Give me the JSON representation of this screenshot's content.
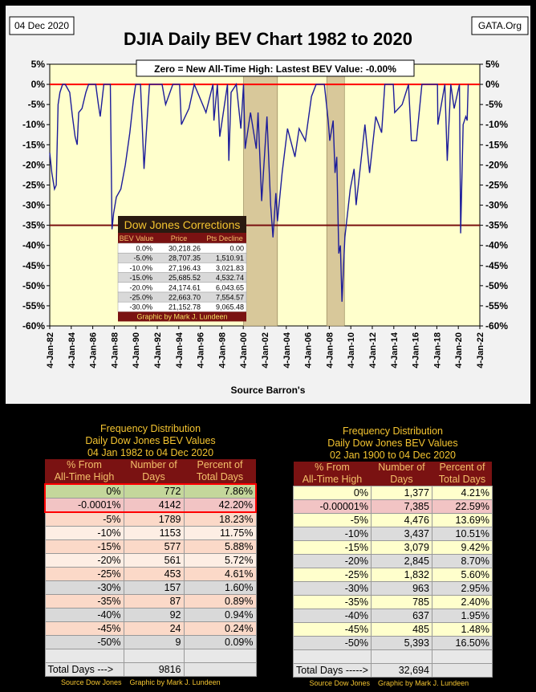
{
  "header": {
    "date": "04 Dec 2020",
    "source": "GATA.Org"
  },
  "chart_data": {
    "type": "line",
    "title": "DJIA Daily BEV Chart 1982 to 2020",
    "annotation": "Zero = New All-Time High: Lastest BEV Value: -0.00%",
    "x_label": "Source Barron's",
    "x": [
      "1982-01-04",
      "1982-03-15",
      "1982-06-15",
      "1982-08-12",
      "1982-10-15",
      "1982-12-15",
      "1983-03-15",
      "1983-06-15",
      "1983-11-15",
      "1984-02-15",
      "1984-05-15",
      "1984-07-24",
      "1984-09-15",
      "1985-01-04",
      "1985-05-15",
      "1985-08-15",
      "1985-12-15",
      "1986-04-15",
      "1986-07-15",
      "1986-09-15",
      "1987-01-15",
      "1987-08-25",
      "1987-10-19",
      "1987-12-15",
      "1988-03-15",
      "1988-08-15",
      "1989-01-15",
      "1989-06-15",
      "1989-10-15",
      "1990-01-02",
      "1990-06-15",
      "1990-10-11",
      "1991-01-15",
      "1991-04-15",
      "1991-12-15",
      "1992-06-15",
      "1992-10-15",
      "1993-06-15",
      "1994-02-01",
      "1994-04-04",
      "1994-12-15",
      "1995-06-15",
      "1996-07-15",
      "1997-03-11",
      "1997-04-11",
      "1997-08-06",
      "1997-10-27",
      "1998-07-17",
      "1998-08-31",
      "1998-11-15",
      "1999-05-13",
      "1999-10-15",
      "2000-01-14",
      "2000-03-07",
      "2000-09-06",
      "2001-03-22",
      "2001-05-21",
      "2001-09-21",
      "2002-03-19",
      "2002-07-23",
      "2002-10-09",
      "2003-01-15",
      "2003-03-11",
      "2003-08-15",
      "2004-02-15",
      "2004-10-25",
      "2005-03-15",
      "2005-10-15",
      "2006-05-10",
      "2006-10-15",
      "2007-02-20",
      "2007-07-19",
      "2007-11-26",
      "2008-01-22",
      "2008-05-15",
      "2008-07-15",
      "2008-09-15",
      "2008-11-20",
      "2009-01-15",
      "2009-03-09",
      "2009-06-15",
      "2009-12-15",
      "2010-04-26",
      "2010-07-02",
      "2010-12-15",
      "2011-04-29",
      "2011-10-03",
      "2012-05-01",
      "2012-11-15",
      "2013-03-05",
      "2013-12-15",
      "2014-02-03",
      "2014-10-15",
      "2015-05-19",
      "2015-08-25",
      "2016-02-11",
      "2016-08-15",
      "2017-06-15",
      "2018-01-26",
      "2018-02-08",
      "2018-10-03",
      "2018-12-24",
      "2019-04-23",
      "2019-08-15",
      "2020-02-12",
      "2020-03-23",
      "2020-06-15",
      "2020-09-15",
      "2020-10-30",
      "2020-12-04"
    ],
    "series": [
      {
        "color": "#1c1c9a",
        "values": [
          -17,
          -22,
          -26,
          -25,
          -5,
          -2,
          0,
          0,
          -2,
          -8,
          -13,
          -15,
          -7,
          -6,
          -2,
          0,
          0,
          0,
          -5,
          -8,
          0,
          0,
          -36,
          -32,
          -28,
          -26,
          -20,
          -12,
          -4,
          0,
          0,
          -21,
          -10,
          0,
          0,
          0,
          -5,
          0,
          0,
          -10,
          -6,
          0,
          -7,
          0,
          -9,
          0,
          -13,
          0,
          -19,
          -2,
          0,
          -11,
          0,
          -16,
          -7,
          -16,
          -7,
          -29,
          -8,
          -30,
          -38,
          -27,
          -34,
          -22,
          -11,
          -18,
          -11,
          -14,
          -3,
          0,
          0,
          0,
          -9,
          -14,
          -9,
          -22,
          -18,
          -42,
          -40,
          -54,
          -38,
          -26,
          -21,
          -30,
          -19,
          -10,
          -22,
          -8,
          -12,
          0,
          0,
          -7,
          -5,
          0,
          -14,
          -14,
          0,
          0,
          0,
          -10,
          0,
          -19,
          0,
          -6,
          0,
          -37,
          -10,
          -8,
          -9,
          0
        ]
      }
    ],
    "xlim": [
      "1982-01-04",
      "2022-01-04"
    ],
    "xticks": [
      {
        "value": "1982-01-04",
        "label": "4-Jan-82"
      },
      {
        "value": "1984-01-04",
        "label": "4-Jan-84"
      },
      {
        "value": "1986-01-04",
        "label": "4-Jan-86"
      },
      {
        "value": "1988-01-04",
        "label": "4-Jan-88"
      },
      {
        "value": "1990-01-04",
        "label": "4-Jan-90"
      },
      {
        "value": "1992-01-04",
        "label": "4-Jan-92"
      },
      {
        "value": "1994-01-04",
        "label": "4-Jan-94"
      },
      {
        "value": "1996-01-04",
        "label": "4-Jan-96"
      },
      {
        "value": "1998-01-04",
        "label": "4-Jan-98"
      },
      {
        "value": "2000-01-04",
        "label": "4-Jan-00"
      },
      {
        "value": "2002-01-04",
        "label": "4-Jan-02"
      },
      {
        "value": "2004-01-04",
        "label": "4-Jan-04"
      },
      {
        "value": "2006-01-04",
        "label": "4-Jan-06"
      },
      {
        "value": "2008-01-04",
        "label": "4-Jan-08"
      },
      {
        "value": "2010-01-04",
        "label": "4-Jan-10"
      },
      {
        "value": "2012-01-04",
        "label": "4-Jan-12"
      },
      {
        "value": "2014-01-04",
        "label": "4-Jan-14"
      },
      {
        "value": "2016-01-04",
        "label": "4-Jan-16"
      },
      {
        "value": "2018-01-04",
        "label": "4-Jan-18"
      },
      {
        "value": "2020-01-04",
        "label": "4-Jan-20"
      },
      {
        "value": "2022-01-04",
        "label": "4-Jan-22"
      }
    ],
    "ylim": [
      -60,
      5
    ],
    "yticks": [
      {
        "value": 5,
        "label": "5%"
      },
      {
        "value": 0,
        "label": "0%"
      },
      {
        "value": -5,
        "label": "-5%"
      },
      {
        "value": -10,
        "label": "-10%"
      },
      {
        "value": -15,
        "label": "-15%"
      },
      {
        "value": -20,
        "label": "-20%"
      },
      {
        "value": -25,
        "label": "-25%"
      },
      {
        "value": -30,
        "label": "-30%"
      },
      {
        "value": -35,
        "label": "-35%"
      },
      {
        "value": -40,
        "label": "-40%"
      },
      {
        "value": -45,
        "label": "-45%"
      },
      {
        "value": -50,
        "label": "-50%"
      },
      {
        "value": -55,
        "label": "-55%"
      },
      {
        "value": -60,
        "label": "-60%"
      }
    ],
    "y2lim": [
      -60,
      5
    ],
    "y2ticks": [
      {
        "value": 5,
        "label": "5%"
      },
      {
        "value": 0,
        "label": "0%"
      },
      {
        "value": -5,
        "label": "-5%"
      },
      {
        "value": -10,
        "label": "-10%"
      },
      {
        "value": -15,
        "label": "-15%"
      },
      {
        "value": -20,
        "label": "-20%"
      },
      {
        "value": -25,
        "label": "-25%"
      },
      {
        "value": -30,
        "label": "-30%"
      },
      {
        "value": -35,
        "label": "-35%"
      },
      {
        "value": -40,
        "label": "-40%"
      },
      {
        "value": -45,
        "label": "-45%"
      },
      {
        "value": -50,
        "label": "-50%"
      },
      {
        "value": -55,
        "label": "-55%"
      },
      {
        "value": -60,
        "label": "-60%"
      }
    ],
    "reference_lines": [
      {
        "value": 0,
        "color": "#ff0000"
      },
      {
        "value": -35,
        "color": "#7a1010"
      }
    ],
    "shaded_periods": [
      {
        "start": "2000-01-14",
        "end": "2003-03-11"
      },
      {
        "start": "2007-10-09",
        "end": "2009-06-01"
      }
    ],
    "shade_color": "#d8c89a",
    "plot_background": "#ffffcc",
    "inset_table": {
      "title": "Dow Jones Corrections",
      "headers": [
        "BEV Value",
        "Price",
        "Pts Decline"
      ],
      "rows": [
        [
          "0.0%",
          "30,218.26",
          "0.00"
        ],
        [
          "-5.0%",
          "28,707.35",
          "1,510.91"
        ],
        [
          "-10.0%",
          "27,196.43",
          "3,021.83"
        ],
        [
          "-15.0%",
          "25,685.52",
          "4,532.74"
        ],
        [
          "-20.0%",
          "24,174.61",
          "6,043.65"
        ],
        [
          "-25.0%",
          "22,663.70",
          "7,554.57"
        ],
        [
          "-30.0%",
          "21,152.78",
          "9,065.48"
        ]
      ],
      "footer": "Graphic by Mark J. Lundeen"
    }
  },
  "tables": [
    {
      "title_lines": [
        "Frequency Distribution",
        "Daily Dow Jones BEV Values",
        "04 Jan 1982 to 04 Dec 2020"
      ],
      "headers": [
        [
          "% From",
          "All-Time High"
        ],
        [
          "Number of",
          "Days"
        ],
        [
          "Percent of",
          "Total Days"
        ]
      ],
      "rows": [
        [
          "0%",
          "772",
          "7.86%"
        ],
        [
          "-0.0001%",
          "4142",
          "42.20%"
        ],
        [
          "-5%",
          "1789",
          "18.23%"
        ],
        [
          "-10%",
          "1153",
          "11.75%"
        ],
        [
          "-15%",
          "577",
          "5.88%"
        ],
        [
          "-20%",
          "561",
          "5.72%"
        ],
        [
          "-25%",
          "453",
          "4.61%"
        ],
        [
          "-30%",
          "157",
          "1.60%"
        ],
        [
          "-35%",
          "87",
          "0.89%"
        ],
        [
          "-40%",
          "92",
          "0.94%"
        ],
        [
          "-45%",
          "24",
          "0.24%"
        ],
        [
          "-50%",
          "9",
          "0.09%"
        ]
      ],
      "total": {
        "label": "Total Days --->",
        "value": "9816"
      },
      "footer": [
        "Source Dow Jones",
        "Graphic by Mark J. Lundeen"
      ]
    },
    {
      "title_lines": [
        "Frequency Distribution",
        "Daily Dow Jones BEV Values",
        "02 Jan 1900 to 04 Dec 2020"
      ],
      "headers": [
        [
          "% From",
          "All-Time High"
        ],
        [
          "Number of",
          "Days"
        ],
        [
          "Percent of",
          "Total Days"
        ]
      ],
      "rows": [
        [
          "0%",
          "1,377",
          "4.21%"
        ],
        [
          "-0.00001%",
          "7,385",
          "22.59%"
        ],
        [
          "-5%",
          "4,476",
          "13.69%"
        ],
        [
          "-10%",
          "3,437",
          "10.51%"
        ],
        [
          "-15%",
          "3,079",
          "9.42%"
        ],
        [
          "-20%",
          "2,845",
          "8.70%"
        ],
        [
          "-25%",
          "1,832",
          "5.60%"
        ],
        [
          "-30%",
          "963",
          "2.95%"
        ],
        [
          "-35%",
          "785",
          "2.40%"
        ],
        [
          "-40%",
          "637",
          "1.95%"
        ],
        [
          "-45%",
          "485",
          "1.48%"
        ],
        [
          "-50%",
          "5,393",
          "16.50%"
        ]
      ],
      "total": {
        "label": "Total Days ----->",
        "value": "32,694"
      },
      "footer": [
        "Source Dow Jones",
        "Graphic by Mark J. Lundeen"
      ]
    }
  ]
}
